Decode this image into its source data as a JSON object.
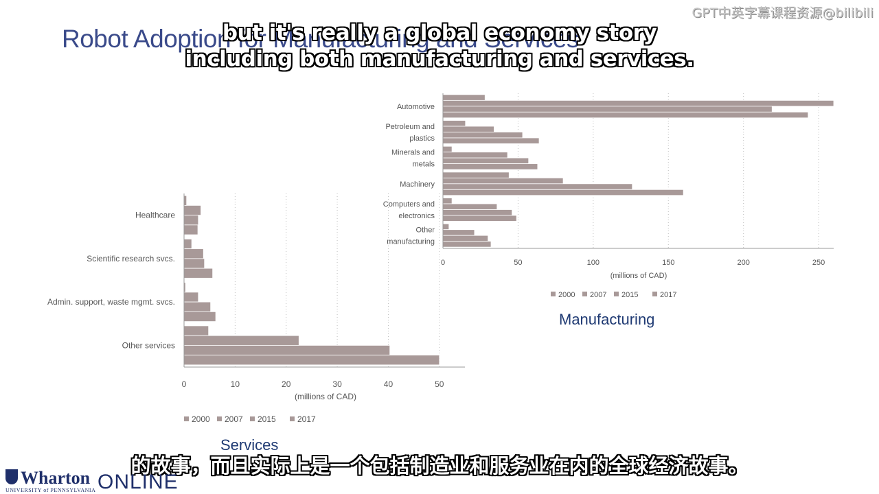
{
  "slide": {
    "title": "Robot Adoption for Manufacturing and Services",
    "watermark": "GPT中英字幕课程资源@bilibili"
  },
  "subtitles": {
    "en_line1": "but it's really a global economy story",
    "en_line2": "including both manufacturing and services.",
    "zh": "的故事，而且实际上是一个包括制造业和服务业在内的全球经济故事。"
  },
  "logo": {
    "name": "Wharton",
    "sub": "UNIVERSITY of PENNSYLVANIA",
    "online": "ONLINE"
  },
  "colors": {
    "bar_fill": "#a89998",
    "bar_stroke": "#ffffff",
    "gridline": "#bdbdbd",
    "axis": "#9a9a9a",
    "text": "#555555",
    "caption": "#1f3a73"
  },
  "chart_data": [
    {
      "type": "bar",
      "orientation": "horizontal",
      "title": "Manufacturing",
      "xlabel": "(millions of CAD)",
      "categories": [
        "Automotive",
        "Petroleum and plastics",
        "Minerals and metals",
        "Machinery",
        "Computers and electronics",
        "Other manufacturing"
      ],
      "category_lines": [
        [
          "Automotive"
        ],
        [
          "Petroleum and",
          "plastics"
        ],
        [
          "Minerals and",
          "metals"
        ],
        [
          "Machinery"
        ],
        [
          "Computers and",
          "electronics"
        ],
        [
          "Other",
          "manufacturing"
        ]
      ],
      "series": [
        {
          "name": "2000",
          "values": [
            28,
            15,
            6,
            44,
            6,
            4
          ]
        },
        {
          "name": "2007",
          "values": [
            260,
            34,
            43,
            80,
            36,
            21
          ]
        },
        {
          "name": "2015",
          "values": [
            219,
            53,
            57,
            126,
            46,
            30
          ]
        },
        {
          "name": "2017",
          "values": [
            243,
            64,
            63,
            160,
            49,
            32
          ]
        }
      ],
      "xticks": [
        0,
        50,
        100,
        150,
        200,
        250
      ],
      "xlim": [
        0,
        260
      ],
      "legend": "bottom",
      "grid": true
    },
    {
      "type": "bar",
      "orientation": "horizontal",
      "title": "Services",
      "xlabel": "(millions of CAD)",
      "categories": [
        "Healthcare",
        "Scientific research svcs.",
        "Admin. support, waste mgmt. svcs.",
        "Other services"
      ],
      "category_lines": [
        [
          "Healthcare"
        ],
        [
          "Scientific research svcs."
        ],
        [
          "Admin. support, waste mgmt. svcs."
        ],
        [
          "Other services"
        ]
      ],
      "series": [
        {
          "name": "2000",
          "values": [
            0.5,
            1.5,
            0.3,
            4.8
          ]
        },
        {
          "name": "2007",
          "values": [
            3.3,
            3.8,
            2.8,
            22.5
          ]
        },
        {
          "name": "2015",
          "values": [
            2.8,
            4.0,
            5.2,
            40.3
          ]
        },
        {
          "name": "2017",
          "values": [
            2.7,
            5.6,
            6.2,
            50.0
          ]
        }
      ],
      "xticks": [
        0,
        10,
        20,
        30,
        40,
        50
      ],
      "xlim": [
        0,
        55
      ],
      "legend": "bottom",
      "grid": true
    }
  ]
}
